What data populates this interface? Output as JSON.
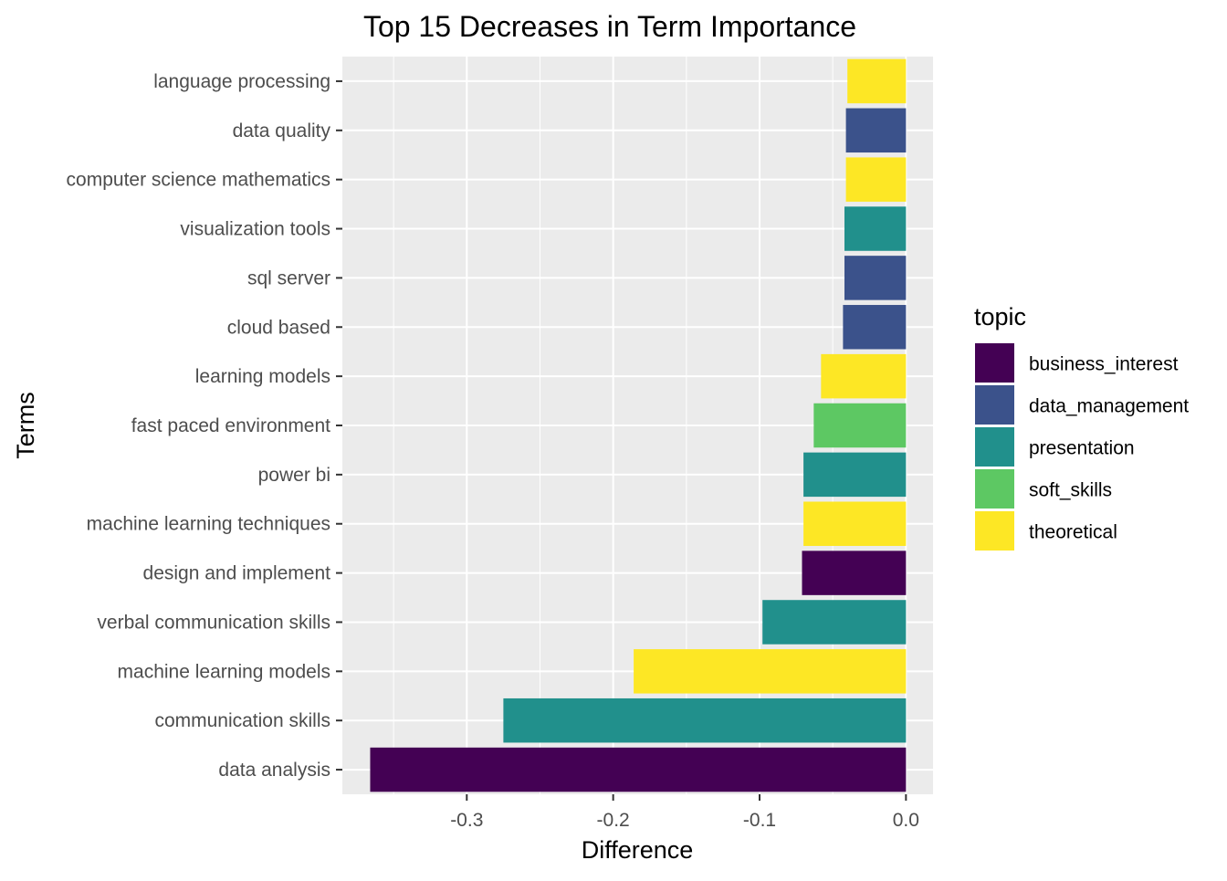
{
  "chart_data": {
    "type": "bar",
    "orientation": "horizontal",
    "title": "Top 15 Decreases in Term Importance",
    "xlabel": "Difference",
    "ylabel": "Terms",
    "xlim": [
      -0.385,
      0.0185
    ],
    "x_ticks": [
      -0.3,
      -0.2,
      -0.1,
      0.0
    ],
    "x_tick_labels": [
      "-0.3",
      "-0.2",
      "-0.1",
      "0.0"
    ],
    "grid": true,
    "legend": {
      "title": "topic",
      "placement": "right",
      "entries": [
        {
          "key": "business_interest",
          "label": "business_interest",
          "color": "#440154"
        },
        {
          "key": "data_management",
          "label": "data_management",
          "color": "#3B528B"
        },
        {
          "key": "presentation",
          "label": "presentation",
          "color": "#21908C"
        },
        {
          "key": "soft_skills",
          "label": "soft_skills",
          "color": "#5DC863"
        },
        {
          "key": "theoretical",
          "label": "theoretical",
          "color": "#FDE725"
        }
      ]
    },
    "bars": [
      {
        "term": "language processing",
        "value": -0.04,
        "topic": "theoretical"
      },
      {
        "term": "data quality",
        "value": -0.041,
        "topic": "data_management"
      },
      {
        "term": "computer science mathematics",
        "value": -0.041,
        "topic": "theoretical"
      },
      {
        "term": "visualization tools",
        "value": -0.042,
        "topic": "presentation"
      },
      {
        "term": "sql server",
        "value": -0.042,
        "topic": "data_management"
      },
      {
        "term": "cloud based",
        "value": -0.043,
        "topic": "data_management"
      },
      {
        "term": "learning models",
        "value": -0.058,
        "topic": "theoretical"
      },
      {
        "term": "fast paced environment",
        "value": -0.063,
        "topic": "soft_skills"
      },
      {
        "term": "power bi",
        "value": -0.07,
        "topic": "presentation"
      },
      {
        "term": "machine learning techniques",
        "value": -0.07,
        "topic": "theoretical"
      },
      {
        "term": "design and implement",
        "value": -0.071,
        "topic": "business_interest"
      },
      {
        "term": "verbal communication skills",
        "value": -0.098,
        "topic": "presentation"
      },
      {
        "term": "machine learning models",
        "value": -0.186,
        "topic": "theoretical"
      },
      {
        "term": "communication skills",
        "value": -0.275,
        "topic": "presentation"
      },
      {
        "term": "data analysis",
        "value": -0.366,
        "topic": "business_interest"
      }
    ]
  }
}
